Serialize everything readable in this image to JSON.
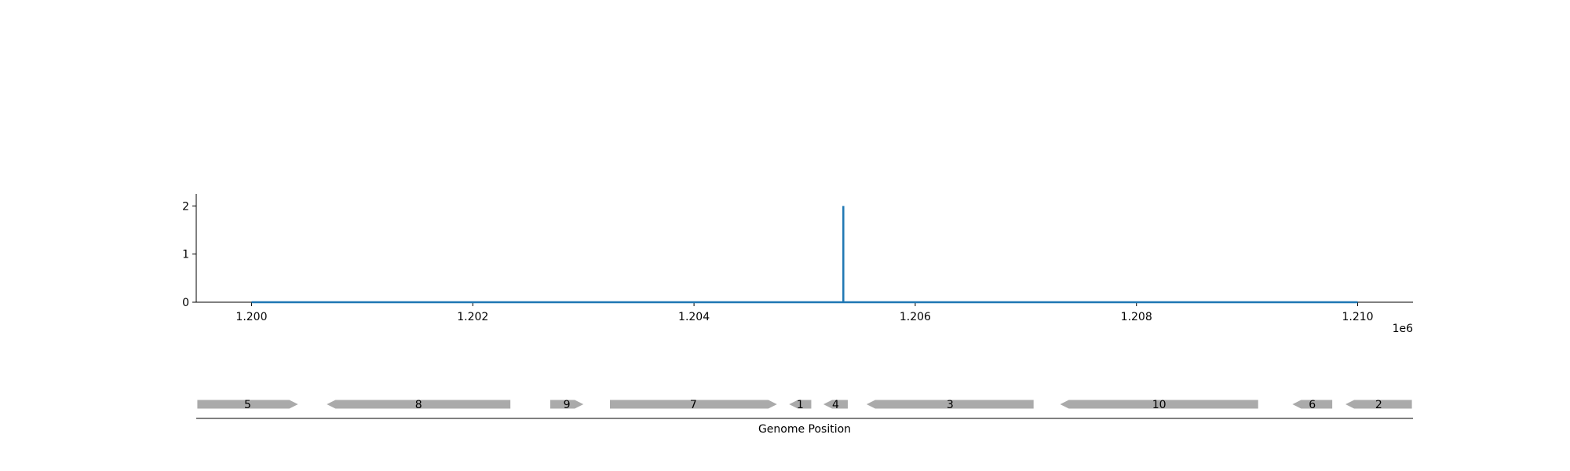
{
  "chart_data": {
    "type": "line",
    "title": "",
    "ylabel": "",
    "xlabel": "Genome Position",
    "x_offset_label": "1e6",
    "xlim": [
      1199500,
      1210500
    ],
    "ylim": [
      0,
      2.25
    ],
    "xticks": [
      1200000,
      1202000,
      1204000,
      1206000,
      1208000,
      1210000
    ],
    "xtick_labels": [
      "1.200",
      "1.202",
      "1.204",
      "1.206",
      "1.208",
      "1.210"
    ],
    "yticks": [
      0,
      1,
      2
    ],
    "ytick_labels": [
      "0",
      "1",
      "2"
    ],
    "grid": false,
    "series": [
      {
        "x": [
          1200000,
          1205350,
          1205350,
          1205350,
          1205350,
          1210000
        ],
        "y": [
          0,
          0,
          2,
          2,
          0,
          0
        ],
        "color": "#1f77b4"
      }
    ],
    "genes": [
      {
        "label": "5",
        "start": 1199510,
        "end": 1200420,
        "strand": "+"
      },
      {
        "label": "8",
        "start": 1200680,
        "end": 1202340,
        "strand": "-"
      },
      {
        "label": "9",
        "start": 1202700,
        "end": 1203000,
        "strand": "+"
      },
      {
        "label": "7",
        "start": 1203240,
        "end": 1204750,
        "strand": "+"
      },
      {
        "label": "1",
        "start": 1204860,
        "end": 1205060,
        "strand": "-"
      },
      {
        "label": "4",
        "start": 1205170,
        "end": 1205390,
        "strand": "-"
      },
      {
        "label": "3",
        "start": 1205560,
        "end": 1207070,
        "strand": "-"
      },
      {
        "label": "10",
        "start": 1207310,
        "end": 1209100,
        "strand": "-"
      },
      {
        "label": "6",
        "start": 1209410,
        "end": 1209770,
        "strand": "-"
      },
      {
        "label": "2",
        "start": 1209890,
        "end": 1210490,
        "strand": "-"
      }
    ],
    "gene_color": "#aaaaaa"
  }
}
